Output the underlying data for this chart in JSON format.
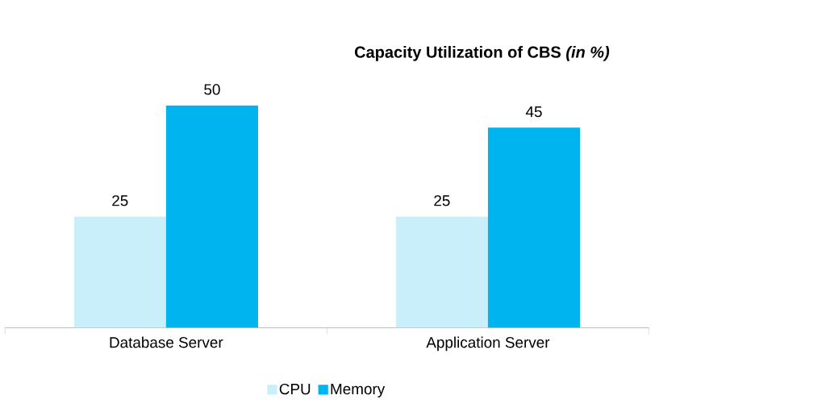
{
  "chart_data": {
    "type": "bar",
    "title": "Capacity Utilization of CBS *(in %)*",
    "categories": [
      "Database Server",
      "Application Server"
    ],
    "series": [
      {
        "name": "CPU",
        "color": "#c9effb",
        "values": [
          25,
          25
        ]
      },
      {
        "name": "Memory",
        "color": "#00b5ef",
        "values": [
          50,
          45
        ]
      }
    ],
    "data_labels": true,
    "legend": "bottom",
    "grid": false
  }
}
